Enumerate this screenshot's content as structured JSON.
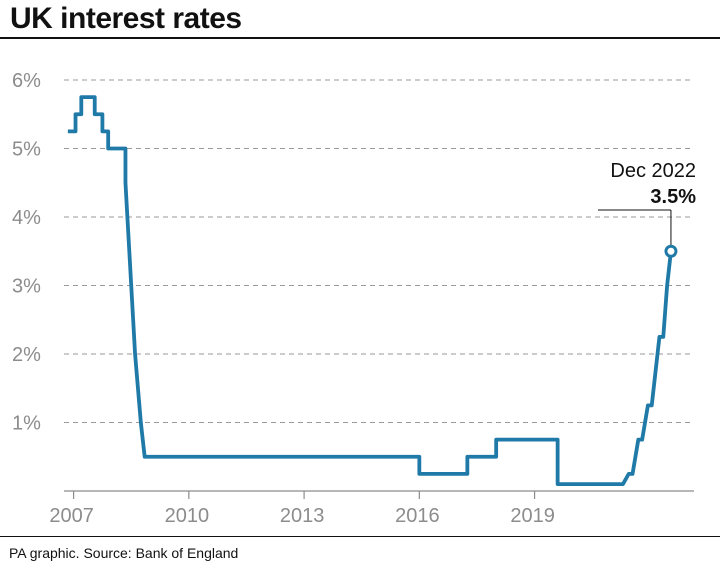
{
  "title": "UK interest rates",
  "source": "PA graphic. Source: Bank of England",
  "chart_data": {
    "type": "line",
    "title": "UK interest rates",
    "xlabel": "",
    "ylabel": "",
    "xlim": [
      2006.75,
      2023.15
    ],
    "ylim": [
      0,
      6
    ],
    "grid": true,
    "line_color": "#1f7aa8",
    "y_ticks": [
      {
        "value": 1,
        "label": "1%"
      },
      {
        "value": 2,
        "label": "2%"
      },
      {
        "value": 3,
        "label": "3%"
      },
      {
        "value": 4,
        "label": "4%"
      },
      {
        "value": 5,
        "label": "5%"
      },
      {
        "value": 6,
        "label": "6%"
      }
    ],
    "x_ticks": [
      {
        "value": 2007,
        "label": "2007"
      },
      {
        "value": 2010,
        "label": "2010"
      },
      {
        "value": 2013,
        "label": "2013"
      },
      {
        "value": 2016,
        "label": "2016"
      },
      {
        "value": 2019,
        "label": "2019"
      }
    ],
    "series": [
      {
        "points": [
          [
            2006.85,
            5.25
          ],
          [
            2007.05,
            5.25
          ],
          [
            2007.05,
            5.5
          ],
          [
            2007.2,
            5.5
          ],
          [
            2007.2,
            5.75
          ],
          [
            2007.55,
            5.75
          ],
          [
            2007.55,
            5.5
          ],
          [
            2007.75,
            5.5
          ],
          [
            2007.75,
            5.25
          ],
          [
            2007.9,
            5.25
          ],
          [
            2007.9,
            5.0
          ],
          [
            2008.35,
            5.0
          ],
          [
            2008.35,
            4.5
          ],
          [
            2008.6,
            2.0
          ],
          [
            2008.75,
            1.0
          ],
          [
            2008.85,
            0.5
          ],
          [
            2016.0,
            0.5
          ],
          [
            2016.0,
            0.25
          ],
          [
            2017.25,
            0.25
          ],
          [
            2017.25,
            0.5
          ],
          [
            2018.0,
            0.5
          ],
          [
            2018.0,
            0.75
          ],
          [
            2019.6,
            0.75
          ],
          [
            2019.6,
            0.1
          ],
          [
            2021.3,
            0.1
          ],
          [
            2021.45,
            0.25
          ],
          [
            2021.55,
            0.25
          ],
          [
            2021.7,
            0.75
          ],
          [
            2021.8,
            0.75
          ],
          [
            2021.95,
            1.25
          ],
          [
            2022.05,
            1.25
          ],
          [
            2022.25,
            2.25
          ],
          [
            2022.35,
            2.25
          ],
          [
            2022.45,
            3.0
          ],
          [
            2022.55,
            3.5
          ]
        ]
      }
    ],
    "annotation": {
      "x": 2022.55,
      "y": 3.5,
      "date": "Dec 2022",
      "value": "3.5%"
    }
  }
}
